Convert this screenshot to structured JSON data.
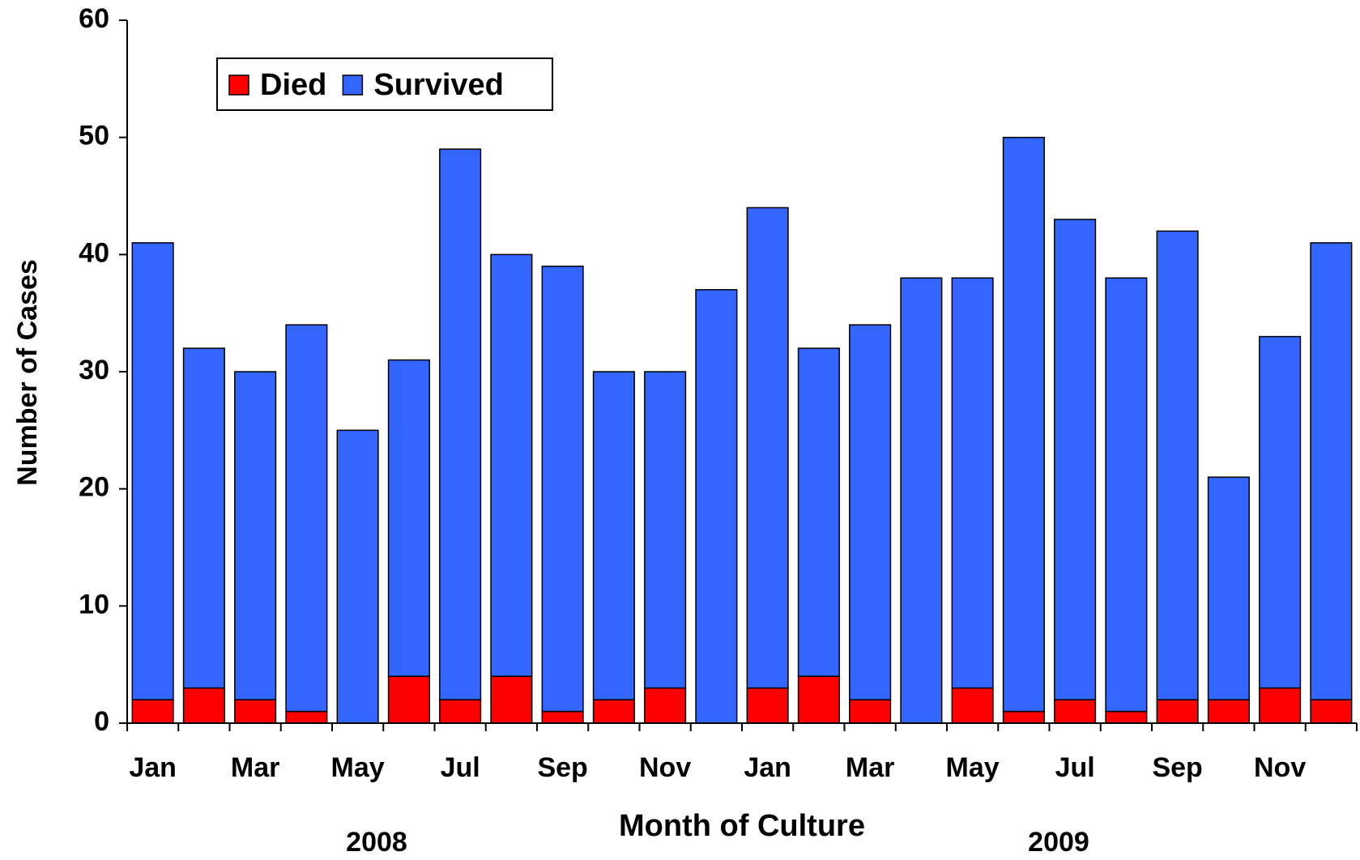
{
  "chart_data": {
    "type": "stacked_bar",
    "categories": [
      "Jan",
      null,
      "Mar",
      null,
      "May",
      null,
      "Jul",
      null,
      "Sep",
      null,
      "Nov",
      null,
      "Jan",
      null,
      "Mar",
      null,
      "May",
      null,
      "Jul",
      null,
      "Sep",
      null,
      "Nov",
      null
    ],
    "series": [
      {
        "name": "Died",
        "color": "#ff0000",
        "values": [
          2,
          3,
          2,
          1,
          0,
          4,
          2,
          4,
          1,
          2,
          3,
          0,
          3,
          4,
          2,
          0,
          3,
          1,
          2,
          1,
          2,
          2,
          3,
          2
        ]
      },
      {
        "name": "Survived",
        "color": "#3366ff",
        "values": [
          39,
          29,
          28,
          33,
          25,
          27,
          47,
          36,
          38,
          28,
          27,
          37,
          41,
          28,
          32,
          38,
          35,
          49,
          41,
          37,
          40,
          19,
          30,
          39
        ]
      }
    ],
    "ylabel": "Number of Cases",
    "xlabel": "Month of Culture",
    "annotations": [
      "2008",
      "2009"
    ],
    "ylim": [
      0,
      60
    ],
    "yticks": [
      0,
      10,
      20,
      30,
      40,
      50,
      60
    ],
    "legend": "upper left"
  }
}
